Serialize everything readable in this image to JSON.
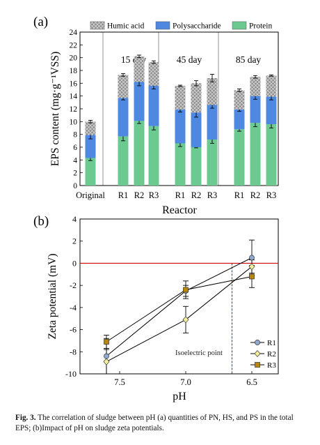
{
  "chart_data": [
    {
      "panel": "(a)",
      "type": "bar",
      "stacked": true,
      "ylabel": "EPS content (mg·g⁻¹VSS)",
      "xlabel": "Reactor",
      "ylim": [
        0,
        24
      ],
      "yticks": [
        0,
        2,
        4,
        6,
        8,
        10,
        12,
        14,
        16,
        18,
        20,
        22,
        24
      ],
      "groups": [
        "",
        "15 day",
        "45 day",
        "85 day"
      ],
      "categories": [
        "Original",
        "R1",
        "R2",
        "R3",
        "R1",
        "R2",
        "R3",
        "R1",
        "R2",
        "R3"
      ],
      "legend_position": "top",
      "series": [
        {
          "name": "Protein",
          "color": "#6cc990",
          "pattern": "solid",
          "values": [
            4.3,
            7.7,
            10.1,
            9.3,
            6.6,
            6.0,
            7.2,
            8.8,
            9.8,
            9.6
          ],
          "errors": [
            0.4,
            0.7,
            0.4,
            0.6,
            0.5,
            0.1,
            0.6,
            0.3,
            0.6,
            0.6
          ]
        },
        {
          "name": "Polysaccharide",
          "color": "#4f88e0",
          "pattern": "solid",
          "values": [
            3.6,
            6.0,
            6.1,
            6.3,
            5.3,
            5.4,
            5.4,
            3.1,
            4.2,
            4.3
          ],
          "errors": [
            0.6,
            0.3,
            0.6,
            0.5,
            0.4,
            0.7,
            0.5,
            0.3,
            0.5,
            0.5
          ]
        },
        {
          "name": "Humic acid",
          "color": "#8c8c8c",
          "pattern": "crosshatch",
          "values": [
            2.1,
            3.6,
            4.0,
            3.7,
            3.7,
            4.6,
            4.2,
            3.0,
            3.0,
            3.3
          ],
          "errors": [
            0.2,
            0.2,
            0.2,
            0.2,
            0.1,
            0.4,
            0.6,
            0.2,
            0.2,
            0.1
          ]
        }
      ]
    },
    {
      "panel": "(b)",
      "type": "line",
      "xlabel": "pH",
      "ylabel": "Zeta potential (mV)",
      "xlim": [
        7.8,
        6.3
      ],
      "x_reversed": true,
      "xticks": [
        7.5,
        7.0,
        6.5
      ],
      "ylim": [
        -10,
        4
      ],
      "yticks": [
        -10,
        -8,
        -6,
        -4,
        -2,
        0,
        2,
        4
      ],
      "legend_position": "bottom-right",
      "reference_lines": [
        {
          "orientation": "horizontal",
          "value": 0,
          "color": "#cc0000",
          "style": "solid"
        },
        {
          "orientation": "vertical",
          "value": 6.65,
          "y_to": 0,
          "color": "#cc0000",
          "style": "dashed",
          "label": "Isoelectric point"
        }
      ],
      "series": [
        {
          "name": "R1",
          "marker": "circle",
          "color": "#8fa9cf",
          "x": [
            7.6,
            7.0,
            6.5
          ],
          "y": [
            -8.4,
            -2.5,
            0.5
          ],
          "errors": [
            1.6,
            0.5,
            1.6
          ]
        },
        {
          "name": "R2",
          "marker": "diamond",
          "color": "#f2ee9a",
          "x": [
            7.6,
            7.0,
            6.5
          ],
          "y": [
            -8.9,
            -5.1,
            -0.3
          ],
          "errors": [
            1.1,
            1.2,
            0.6
          ]
        },
        {
          "name": "R3",
          "marker": "square",
          "color": "#b8860b",
          "x": [
            7.6,
            7.0,
            6.5
          ],
          "y": [
            -7.1,
            -2.4,
            -1.2
          ],
          "errors": [
            0.6,
            0.8,
            1.0
          ]
        }
      ]
    }
  ],
  "caption": {
    "label": "Fig. 3.",
    "text": "The correlation of sludge between pH (a) quantities of PN, HS, and PS in the total EPS; (b)Impact of pH on sludge zeta potentials."
  }
}
